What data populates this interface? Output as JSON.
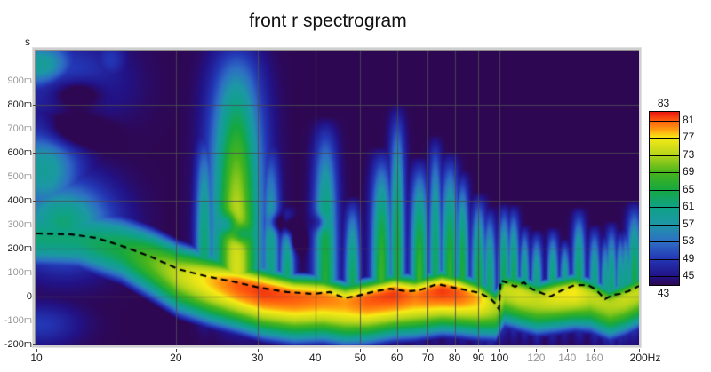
{
  "title": "front r spectrogram",
  "axes": {
    "y_unit_label": "s",
    "y_ticks": [
      {
        "label": "900m",
        "t": 900,
        "minor": true
      },
      {
        "label": "800m",
        "t": 800,
        "minor": false
      },
      {
        "label": "700m",
        "t": 700,
        "minor": true
      },
      {
        "label": "600m",
        "t": 600,
        "minor": false
      },
      {
        "label": "500m",
        "t": 500,
        "minor": true
      },
      {
        "label": "400m",
        "t": 400,
        "minor": false
      },
      {
        "label": "300m",
        "t": 300,
        "minor": true
      },
      {
        "label": "200m",
        "t": 200,
        "minor": false
      },
      {
        "label": "100m",
        "t": 100,
        "minor": true
      },
      {
        "label": "0",
        "t": 0,
        "minor": false
      },
      {
        "label": "-100m",
        "t": -100,
        "minor": true
      },
      {
        "label": "-200m",
        "t": -200,
        "minor": false
      }
    ],
    "x_ticks": [
      {
        "label": "10",
        "f": 10,
        "minor": false
      },
      {
        "label": "20",
        "f": 20,
        "minor": false
      },
      {
        "label": "30",
        "f": 30,
        "minor": false
      },
      {
        "label": "40",
        "f": 40,
        "minor": false
      },
      {
        "label": "50",
        "f": 50,
        "minor": false
      },
      {
        "label": "60",
        "f": 60,
        "minor": false
      },
      {
        "label": "70",
        "f": 70,
        "minor": false
      },
      {
        "label": "80",
        "f": 80,
        "minor": false
      },
      {
        "label": "90",
        "f": 90,
        "minor": false
      },
      {
        "label": "100",
        "f": 100,
        "minor": false
      },
      {
        "label": "120",
        "f": 120,
        "minor": true
      },
      {
        "label": "140",
        "f": 140,
        "minor": true
      },
      {
        "label": "160",
        "f": 160,
        "minor": true
      },
      {
        "label": "200Hz",
        "f": 200,
        "minor": false
      }
    ],
    "grid_times_ms": [
      800,
      600,
      400,
      200,
      0
    ],
    "grid_freqs_hz": [
      20,
      30,
      40,
      50,
      60,
      70,
      80,
      90,
      100
    ]
  },
  "legend": {
    "top_label": "83",
    "bottom_label": "43",
    "tick_labels": [
      81,
      77,
      73,
      69,
      65,
      61,
      57,
      53,
      49,
      45
    ],
    "max_db": 83,
    "min_db": 43
  },
  "chart_data": {
    "type": "heatmap",
    "title": "front r spectrogram",
    "xlabel": "Hz",
    "ylabel": "s",
    "x_scale": "log",
    "x_range_hz": [
      10,
      200
    ],
    "y_range_ms": [
      -200,
      1022
    ],
    "db_range": [
      43,
      83
    ],
    "background_db": 43,
    "colormap": [
      [
        43,
        "#2e0752"
      ],
      [
        45,
        "#221286"
      ],
      [
        49,
        "#2336b4"
      ],
      [
        53,
        "#2e6ec4"
      ],
      [
        57,
        "#1d97a6"
      ],
      [
        61,
        "#0fa287"
      ],
      [
        65,
        "#16a83f"
      ],
      [
        69,
        "#48b41c"
      ],
      [
        73,
        "#b4d41a"
      ],
      [
        77,
        "#f7ea15"
      ],
      [
        79,
        "#ff990f"
      ],
      [
        81,
        "#ff5a0e"
      ],
      [
        83,
        "#e81810"
      ]
    ],
    "arrival_line_f_t": [
      [
        10,
        263
      ],
      [
        11.9,
        259
      ],
      [
        13.5,
        244
      ],
      [
        15.5,
        207
      ],
      [
        17.8,
        163
      ],
      [
        20.2,
        115
      ],
      [
        23.2,
        85
      ],
      [
        26.5,
        63
      ],
      [
        30.3,
        37
      ],
      [
        34.7,
        19
      ],
      [
        39.7,
        11
      ],
      [
        43,
        19
      ],
      [
        46.3,
        -7
      ],
      [
        49.5,
        4
      ],
      [
        53.9,
        22
      ],
      [
        58.1,
        33
      ],
      [
        62.9,
        22
      ],
      [
        67.1,
        26
      ],
      [
        73.3,
        52
      ],
      [
        78.1,
        41
      ],
      [
        83.2,
        30
      ],
      [
        90.5,
        15
      ],
      [
        95.4,
        -7
      ],
      [
        98,
        -30
      ],
      [
        99.7,
        -52
      ],
      [
        100.6,
        67
      ],
      [
        104.2,
        56
      ],
      [
        108,
        41
      ],
      [
        112.9,
        59
      ],
      [
        116.9,
        33
      ],
      [
        123.2,
        15
      ],
      [
        128.7,
        0
      ],
      [
        136.2,
        26
      ],
      [
        145.3,
        48
      ],
      [
        155.1,
        48
      ],
      [
        161.3,
        30
      ],
      [
        168.9,
        -11
      ],
      [
        175.6,
        7
      ],
      [
        181.7,
        11
      ],
      [
        189.6,
        22
      ],
      [
        200,
        44
      ]
    ],
    "ridge_f_t_db_wu_wd": [
      [
        10,
        245,
        62,
        65,
        52
      ],
      [
        12.3,
        237,
        62,
        62,
        52
      ],
      [
        15.2,
        196,
        65,
        58,
        54
      ],
      [
        17.8,
        141,
        70,
        52,
        56
      ],
      [
        20.2,
        93,
        74,
        46,
        58
      ],
      [
        23.7,
        67,
        78,
        38,
        60
      ],
      [
        27.1,
        48,
        81,
        34,
        60
      ],
      [
        30.8,
        22,
        82,
        32,
        60
      ],
      [
        35.9,
        0,
        81,
        30,
        60
      ],
      [
        41.5,
        -4,
        80,
        30,
        58
      ],
      [
        46.3,
        -22,
        79,
        28,
        58
      ],
      [
        51.6,
        -11,
        81,
        28,
        58
      ],
      [
        59,
        11,
        82,
        28,
        58
      ],
      [
        65.5,
        4,
        80,
        28,
        56
      ],
      [
        75,
        26,
        82,
        27,
        56
      ],
      [
        81.5,
        15,
        81,
        27,
        55
      ],
      [
        90.5,
        -7,
        78,
        26,
        54
      ],
      [
        98,
        -37,
        73,
        24,
        50
      ],
      [
        102.4,
        30,
        74,
        25,
        52
      ],
      [
        110.4,
        15,
        75,
        25,
        52
      ],
      [
        120.4,
        -7,
        74,
        25,
        52
      ],
      [
        131.6,
        8,
        76,
        25,
        52
      ],
      [
        145,
        22,
        77,
        25,
        52
      ],
      [
        156.5,
        8,
        74,
        25,
        52
      ],
      [
        172.6,
        -30,
        73,
        25,
        52
      ],
      [
        185.6,
        -7,
        74,
        25,
        52
      ],
      [
        200,
        22,
        74,
        25,
        52
      ]
    ],
    "plumes_f_sx_top_db": [
      [
        27,
        20,
        1100,
        75
      ],
      [
        23,
        7,
        719,
        63
      ],
      [
        32,
        7,
        679,
        61
      ],
      [
        34.7,
        6,
        384,
        63
      ],
      [
        42,
        9,
        754,
        66
      ],
      [
        48,
        6,
        422,
        64
      ],
      [
        55.5,
        8,
        629,
        68
      ],
      [
        60,
        6,
        809,
        66
      ],
      [
        67,
        7,
        589,
        68
      ],
      [
        72.5,
        5,
        679,
        64
      ],
      [
        78,
        7,
        609,
        67
      ],
      [
        83,
        5,
        534,
        66
      ],
      [
        90,
        6,
        439,
        65
      ],
      [
        95,
        5,
        384,
        63
      ],
      [
        102,
        5,
        394,
        64
      ],
      [
        107,
        4.5,
        389,
        64
      ],
      [
        113,
        4,
        304,
        62
      ],
      [
        120,
        4.5,
        282,
        62
      ],
      [
        130,
        4.5,
        293,
        63
      ],
      [
        138,
        4,
        245,
        61
      ],
      [
        148,
        5,
        378,
        64
      ],
      [
        160,
        4.5,
        304,
        62
      ],
      [
        169,
        4,
        267,
        61
      ],
      [
        174,
        4.5,
        319,
        63
      ],
      [
        182,
        4,
        282,
        62
      ],
      [
        187,
        4.5,
        293,
        62
      ],
      [
        195,
        6,
        404,
        65
      ]
    ],
    "blobs_f_t_sx_sy_db": [
      [
        10.2,
        969,
        26,
        20,
        59
      ],
      [
        11.6,
        889,
        42,
        34,
        51
      ],
      [
        10.4,
        533,
        28,
        38,
        59
      ],
      [
        11.4,
        311,
        38,
        33,
        62
      ],
      [
        10.2,
        -115,
        30,
        16,
        49
      ],
      [
        14.4,
        989,
        13,
        16,
        49
      ]
    ],
    "holes_f_t_sx_sy_depth": [
      [
        12.1,
        848,
        22,
        13,
        9
      ],
      [
        11.9,
        693,
        26,
        14,
        8
      ],
      [
        25.8,
        304,
        7,
        8,
        10
      ],
      [
        27.6,
        263,
        7,
        7,
        9
      ],
      [
        32.7,
        311,
        6,
        7,
        9
      ],
      [
        35.1,
        293,
        6,
        7,
        10
      ],
      [
        36.6,
        230,
        6,
        7,
        9
      ],
      [
        40.9,
        311,
        6,
        7,
        9
      ]
    ]
  }
}
